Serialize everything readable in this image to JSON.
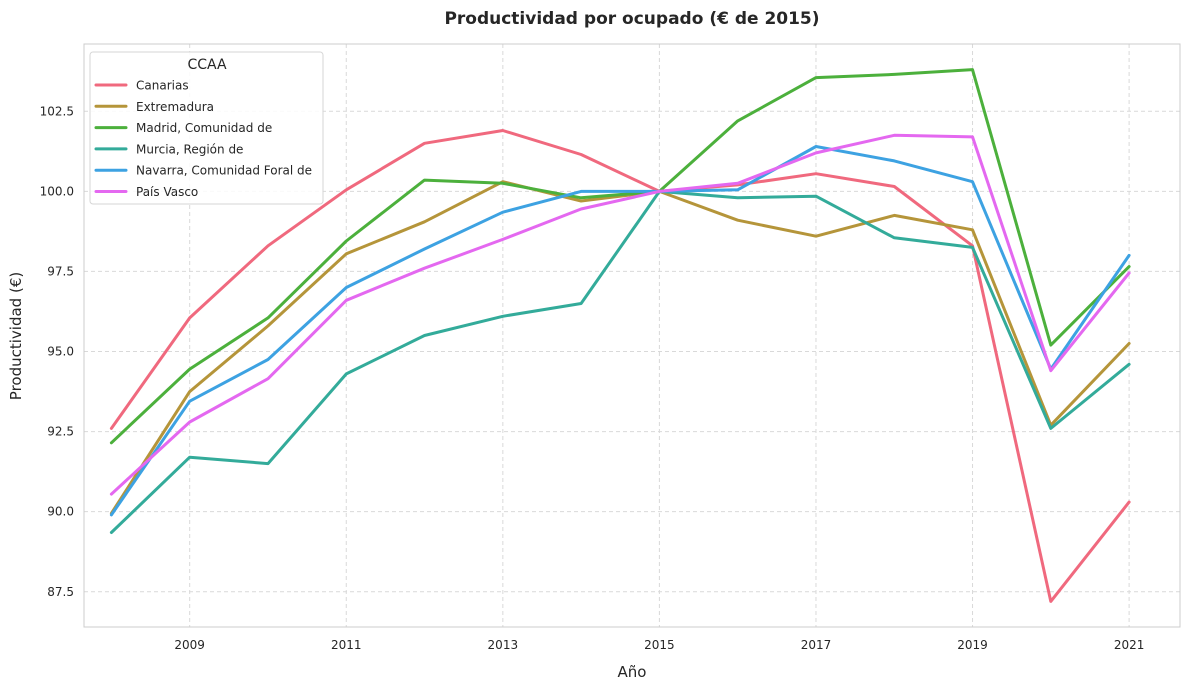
{
  "chart_data": {
    "type": "line",
    "title": "Productividad por ocupado (€ de 2015)",
    "xlabel": "Año",
    "ylabel": "Productividad (€)",
    "x": [
      2008,
      2009,
      2010,
      2011,
      2012,
      2013,
      2014,
      2015,
      2016,
      2017,
      2018,
      2019,
      2020,
      2021
    ],
    "xticks": [
      2009,
      2011,
      2013,
      2015,
      2017,
      2019,
      2021
    ],
    "yticks": [
      87.5,
      90.0,
      92.5,
      95.0,
      97.5,
      100.0,
      102.5
    ],
    "xlim": [
      2007.65,
      2021.65
    ],
    "ylim": [
      86.4,
      104.6
    ],
    "grid": true,
    "legend": {
      "title": "CCAA",
      "placement": "upper-left"
    },
    "series": [
      {
        "name": "Canarias",
        "color": "#f0697e",
        "values": [
          92.6,
          96.05,
          98.3,
          100.05,
          101.5,
          101.9,
          101.15,
          100.0,
          100.2,
          100.55,
          100.15,
          98.3,
          87.2,
          90.3
        ]
      },
      {
        "name": "Extremadura",
        "color": "#b5953a",
        "values": [
          89.95,
          93.75,
          95.8,
          98.05,
          99.05,
          100.3,
          99.7,
          100.0,
          99.1,
          98.6,
          99.25,
          98.8,
          92.7,
          95.25
        ]
      },
      {
        "name": "Madrid, Comunidad de",
        "color": "#4cb03c",
        "values": [
          92.15,
          94.45,
          96.05,
          98.45,
          100.35,
          100.25,
          99.8,
          100.0,
          102.2,
          103.55,
          103.65,
          103.8,
          95.2,
          97.65
        ]
      },
      {
        "name": "Murcia, Región de",
        "color": "#33ab9a",
        "values": [
          89.35,
          91.7,
          91.5,
          94.3,
          95.5,
          96.1,
          96.5,
          100.0,
          99.8,
          99.85,
          98.55,
          98.25,
          92.6,
          94.6
        ]
      },
      {
        "name": "Navarra, Comunidad Foral de",
        "color": "#3da2e2",
        "values": [
          89.9,
          93.45,
          94.75,
          97.0,
          98.2,
          99.35,
          100.0,
          100.0,
          100.05,
          101.4,
          100.95,
          100.3,
          94.45,
          98.0
        ]
      },
      {
        "name": "País Vasco",
        "color": "#e468f0",
        "values": [
          90.55,
          92.8,
          94.15,
          96.6,
          97.6,
          98.5,
          99.45,
          100.0,
          100.25,
          101.2,
          101.75,
          101.7,
          94.4,
          97.45
        ]
      }
    ]
  }
}
